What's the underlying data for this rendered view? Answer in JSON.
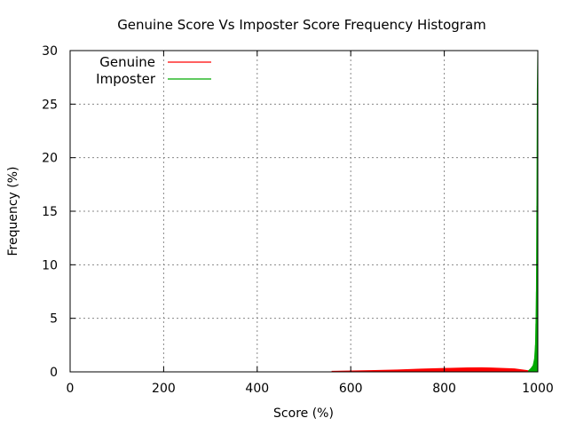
{
  "chart_data": {
    "type": "line",
    "title": "Genuine Score Vs Imposter Score Frequency Histogram",
    "xlabel": "Score (%)",
    "ylabel": "Frequency (%)",
    "xlim": [
      0,
      1000
    ],
    "ylim": [
      0,
      30
    ],
    "x_ticks": [
      "0",
      "200",
      "400",
      "600",
      "800",
      "1000"
    ],
    "y_ticks": [
      "0",
      "5",
      "10",
      "15",
      "20",
      "25",
      "30"
    ],
    "grid": true,
    "legend_position": "top-left",
    "series": [
      {
        "name": "Genuine",
        "color": "#ff0000",
        "x": [
          560,
          600,
          650,
          700,
          750,
          800,
          850,
          880,
          900,
          950,
          990
        ],
        "y": [
          0.05,
          0.08,
          0.12,
          0.18,
          0.26,
          0.32,
          0.37,
          0.38,
          0.36,
          0.28,
          0.05
        ]
      },
      {
        "name": "Imposter",
        "color": "#00aa00",
        "x": [
          980,
          985,
          990,
          993,
          995,
          996,
          997,
          998,
          999,
          1000
        ],
        "y": [
          0.1,
          0.3,
          0.6,
          1.2,
          2.5,
          4.5,
          7.5,
          15.5,
          26.5,
          30
        ]
      }
    ]
  }
}
